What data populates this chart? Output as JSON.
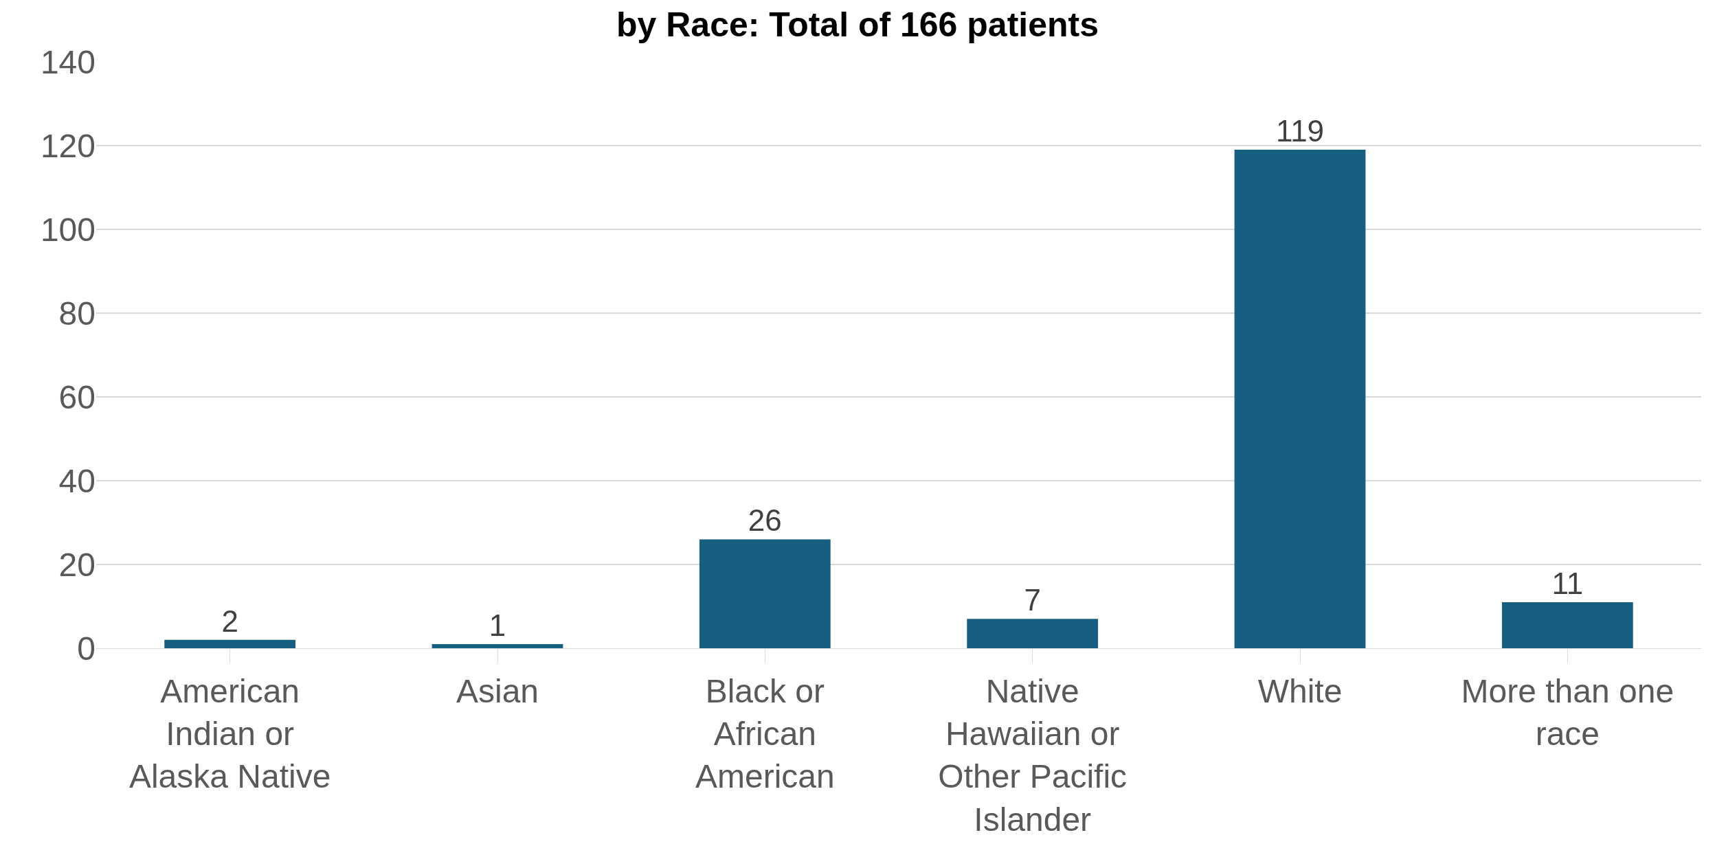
{
  "chart_data": {
    "type": "bar",
    "title": "by Race: Total of 166 patients",
    "categories": [
      "American Indian or Alaska Native",
      "Asian",
      "Black or African American",
      "Native Hawaiian or Other Pacific Islander",
      "White",
      "More than one race"
    ],
    "values": [
      2,
      1,
      26,
      7,
      119,
      11
    ],
    "color": "#175f80",
    "data_labels": true,
    "ylim": [
      0,
      140
    ],
    "yticks": [
      0,
      20,
      40,
      60,
      80,
      100,
      120,
      140
    ],
    "grid": "y",
    "legend": false
  }
}
